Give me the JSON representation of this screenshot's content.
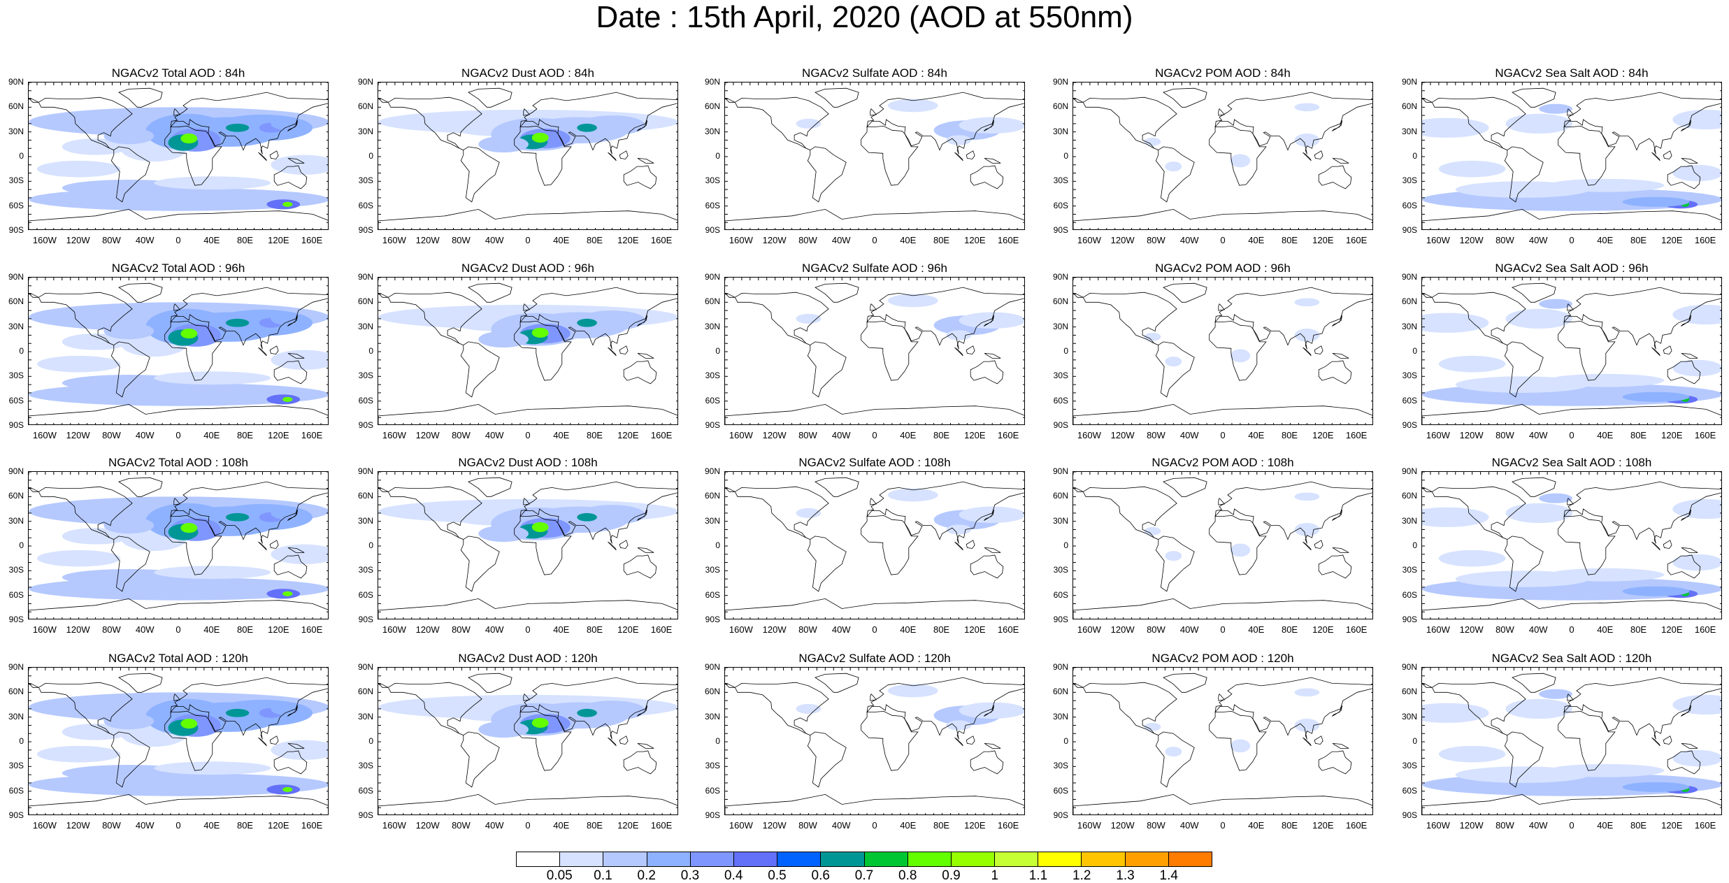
{
  "title": "Date : 15th April, 2020 (AOD at 550nm)",
  "y_tick_labels": [
    "90N",
    "60N",
    "30N",
    "0",
    "30S",
    "60S",
    "90S"
  ],
  "x_tick_labels": [
    "160W",
    "120W",
    "80W",
    "40W",
    "0",
    "40E",
    "80E",
    "120E",
    "160E"
  ],
  "panels": [
    {
      "title": "NGACv2 Total AOD : 84h",
      "species": "total",
      "lead_hours": 84
    },
    {
      "title": "NGACv2 Dust AOD : 84h",
      "species": "dust",
      "lead_hours": 84
    },
    {
      "title": "NGACv2 Sulfate AOD : 84h",
      "species": "sulfate",
      "lead_hours": 84
    },
    {
      "title": "NGACv2 POM AOD : 84h",
      "species": "pom",
      "lead_hours": 84
    },
    {
      "title": "NGACv2 Sea Salt AOD : 84h",
      "species": "seasalt",
      "lead_hours": 84
    },
    {
      "title": "NGACv2 Total AOD : 96h",
      "species": "total",
      "lead_hours": 96
    },
    {
      "title": "NGACv2 Dust AOD : 96h",
      "species": "dust",
      "lead_hours": 96
    },
    {
      "title": "NGACv2 Sulfate AOD : 96h",
      "species": "sulfate",
      "lead_hours": 96
    },
    {
      "title": "NGACv2 POM AOD : 96h",
      "species": "pom",
      "lead_hours": 96
    },
    {
      "title": "NGACv2 Sea Salt AOD : 96h",
      "species": "seasalt",
      "lead_hours": 96
    },
    {
      "title": "NGACv2 Total AOD : 108h",
      "species": "total",
      "lead_hours": 108
    },
    {
      "title": "NGACv2 Dust AOD : 108h",
      "species": "dust",
      "lead_hours": 108
    },
    {
      "title": "NGACv2 Sulfate AOD : 108h",
      "species": "sulfate",
      "lead_hours": 108
    },
    {
      "title": "NGACv2 POM AOD : 108h",
      "species": "pom",
      "lead_hours": 108
    },
    {
      "title": "NGACv2 Sea Salt AOD : 108h",
      "species": "seasalt",
      "lead_hours": 108
    },
    {
      "title": "NGACv2 Total AOD : 120h",
      "species": "total",
      "lead_hours": 120
    },
    {
      "title": "NGACv2 Dust AOD : 120h",
      "species": "dust",
      "lead_hours": 120
    },
    {
      "title": "NGACv2 Sulfate AOD : 120h",
      "species": "sulfate",
      "lead_hours": 120
    },
    {
      "title": "NGACv2 POM AOD : 120h",
      "species": "pom",
      "lead_hours": 120
    },
    {
      "title": "NGACv2 Sea Salt  AOD : 120h",
      "species": "seasalt",
      "lead_hours": 120
    }
  ],
  "colorbar": {
    "colors": [
      "#ffffff",
      "#d6e2ff",
      "#b5c9ff",
      "#8eb2ff",
      "#7f96ff",
      "#6370f8",
      "#0063ff",
      "#009696",
      "#00c633",
      "#63ff00",
      "#96ff00",
      "#c6ff33",
      "#ffff00",
      "#ffc600",
      "#ffa000",
      "#ff7c00",
      "#ff1900"
    ],
    "labels": [
      "0.05",
      "0.1",
      "0.2",
      "0.3",
      "0.4",
      "0.5",
      "0.6",
      "0.7",
      "0.8",
      "0.9",
      "1",
      "1.1",
      "1.2",
      "1.3",
      "1.4"
    ]
  }
}
